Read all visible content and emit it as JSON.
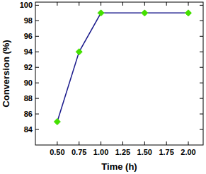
{
  "chart_data": {
    "type": "line",
    "x_label": "Time (h)",
    "y_label": "Conversion (%)",
    "x": [
      0.5,
      0.75,
      1.0,
      1.5,
      2.0
    ],
    "series": [
      {
        "name": null,
        "color": "#1a1a8c",
        "values": [
          85,
          94,
          99,
          99,
          99
        ],
        "marker": "diamond",
        "line_style": "solid"
      }
    ],
    "marker_color": "#44e000",
    "xlim": [
      0.25,
      2.17
    ],
    "xticks": [
      {
        "value": 0.5,
        "label": "0.50"
      },
      {
        "value": 0.75,
        "label": "0.75"
      },
      {
        "value": 1.0,
        "label": "1.00"
      },
      {
        "value": 1.25,
        "label": "1.25"
      },
      {
        "value": 1.5,
        "label": "1.50"
      },
      {
        "value": 1.75,
        "label": "1.75"
      },
      {
        "value": 2.0,
        "label": "2.00"
      }
    ],
    "ylim": [
      82,
      100.4
    ],
    "yticks": [
      84,
      86,
      88,
      90,
      92,
      94,
      96,
      98,
      100
    ],
    "grid": false
  }
}
